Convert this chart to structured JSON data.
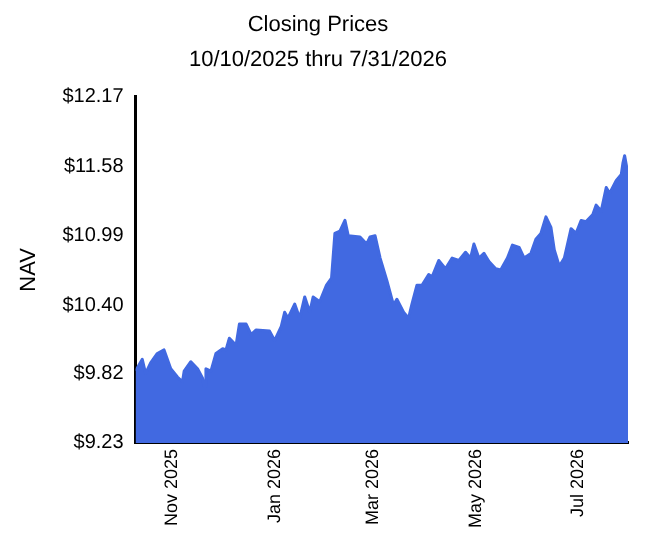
{
  "chart_data": {
    "type": "area",
    "title": "Closing Prices",
    "subtitle": "10/10/2025 thru 7/31/2026",
    "ylabel": "NAV",
    "x": [
      "2025-10-10",
      "2025-10-14",
      "2025-10-16",
      "2025-10-19",
      "2025-10-23",
      "2025-10-27",
      "2025-10-31",
      "2025-11-04",
      "2025-11-07",
      "2025-11-08",
      "2025-11-12",
      "2025-11-16",
      "2025-11-19",
      "2025-11-20",
      "2025-11-21",
      "2025-11-24",
      "2025-11-27",
      "2025-12-01",
      "2025-12-03",
      "2025-12-05",
      "2025-12-09",
      "2025-12-11",
      "2025-12-15",
      "2025-12-18",
      "2025-12-21",
      "2025-12-29",
      "2026-01-01",
      "2026-01-05",
      "2026-01-07",
      "2026-01-09",
      "2026-01-13",
      "2026-01-16",
      "2026-01-19",
      "2026-01-22",
      "2026-01-24",
      "2026-01-28",
      "2026-02-01",
      "2026-02-04",
      "2026-02-06",
      "2026-02-09",
      "2026-02-12",
      "2026-02-14",
      "2026-02-21",
      "2026-02-25",
      "2026-02-27",
      "2026-03-02",
      "2026-03-05",
      "2026-03-09",
      "2026-03-13",
      "2026-03-15",
      "2026-03-19",
      "2026-03-22",
      "2026-03-24",
      "2026-03-27",
      "2026-03-30",
      "2026-04-03",
      "2026-04-05",
      "2026-04-09",
      "2026-04-13",
      "2026-04-17",
      "2026-04-21",
      "2026-04-25",
      "2026-04-28",
      "2026-04-30",
      "2026-05-03",
      "2026-05-06",
      "2026-05-09",
      "2026-05-13",
      "2026-05-16",
      "2026-05-20",
      "2026-05-23",
      "2026-05-27",
      "2026-05-30",
      "2026-06-03",
      "2026-06-06",
      "2026-06-09",
      "2026-06-12",
      "2026-06-15",
      "2026-06-17",
      "2026-06-20",
      "2026-06-23",
      "2026-06-27",
      "2026-06-30",
      "2026-07-03",
      "2026-07-06",
      "2026-07-10",
      "2026-07-12",
      "2026-07-15",
      "2026-07-18",
      "2026-07-20",
      "2026-07-24",
      "2026-07-27",
      "2026-07-28",
      "2026-07-29",
      "2026-07-31"
    ],
    "series": [
      {
        "color": "#4169e1",
        "values": [
          9.84,
          9.94,
          9.82,
          9.91,
          9.99,
          10.02,
          9.86,
          9.79,
          9.75,
          9.84,
          9.92,
          9.86,
          9.78,
          9.71,
          9.86,
          9.84,
          9.99,
          10.03,
          10.02,
          10.12,
          10.06,
          10.24,
          10.24,
          10.15,
          10.19,
          10.18,
          10.1,
          10.22,
          10.34,
          10.29,
          10.41,
          10.29,
          10.47,
          10.34,
          10.47,
          10.43,
          10.57,
          10.63,
          11.01,
          11.03,
          11.12,
          10.99,
          10.98,
          10.92,
          10.98,
          10.99,
          10.8,
          10.61,
          10.4,
          10.45,
          10.34,
          10.29,
          10.41,
          10.57,
          10.57,
          10.66,
          10.64,
          10.78,
          10.71,
          10.8,
          10.78,
          10.85,
          10.8,
          10.92,
          10.8,
          10.84,
          10.77,
          10.71,
          10.7,
          10.8,
          10.91,
          10.89,
          10.8,
          10.84,
          10.96,
          11.01,
          11.15,
          11.06,
          10.87,
          10.73,
          10.8,
          11.05,
          11.01,
          11.12,
          11.11,
          11.17,
          11.25,
          11.2,
          11.4,
          11.35,
          11.46,
          11.51,
          11.61,
          11.67,
          11.51
        ]
      }
    ],
    "xlim": [
      "2025-10-10",
      "2026-07-31"
    ],
    "xticks": [
      {
        "value": "2025-11-01",
        "label": "Nov 2025"
      },
      {
        "value": "2026-01-01",
        "label": "Jan 2026"
      },
      {
        "value": "2026-03-01",
        "label": "Mar 2026"
      },
      {
        "value": "2026-05-01",
        "label": "May 2026"
      },
      {
        "value": "2026-07-01",
        "label": "Jul 2026"
      }
    ],
    "ylim": [
      9.23,
      12.17
    ],
    "yticks": [
      {
        "value": 9.23,
        "label": "$9.23"
      },
      {
        "value": 9.82,
        "label": "$9.82"
      },
      {
        "value": 10.4,
        "label": "$10.40"
      },
      {
        "value": 10.99,
        "label": "$10.99"
      },
      {
        "value": 11.58,
        "label": "$11.58"
      },
      {
        "value": 12.17,
        "label": "$12.17"
      }
    ],
    "grid": false,
    "legend": false,
    "marker": "none"
  }
}
